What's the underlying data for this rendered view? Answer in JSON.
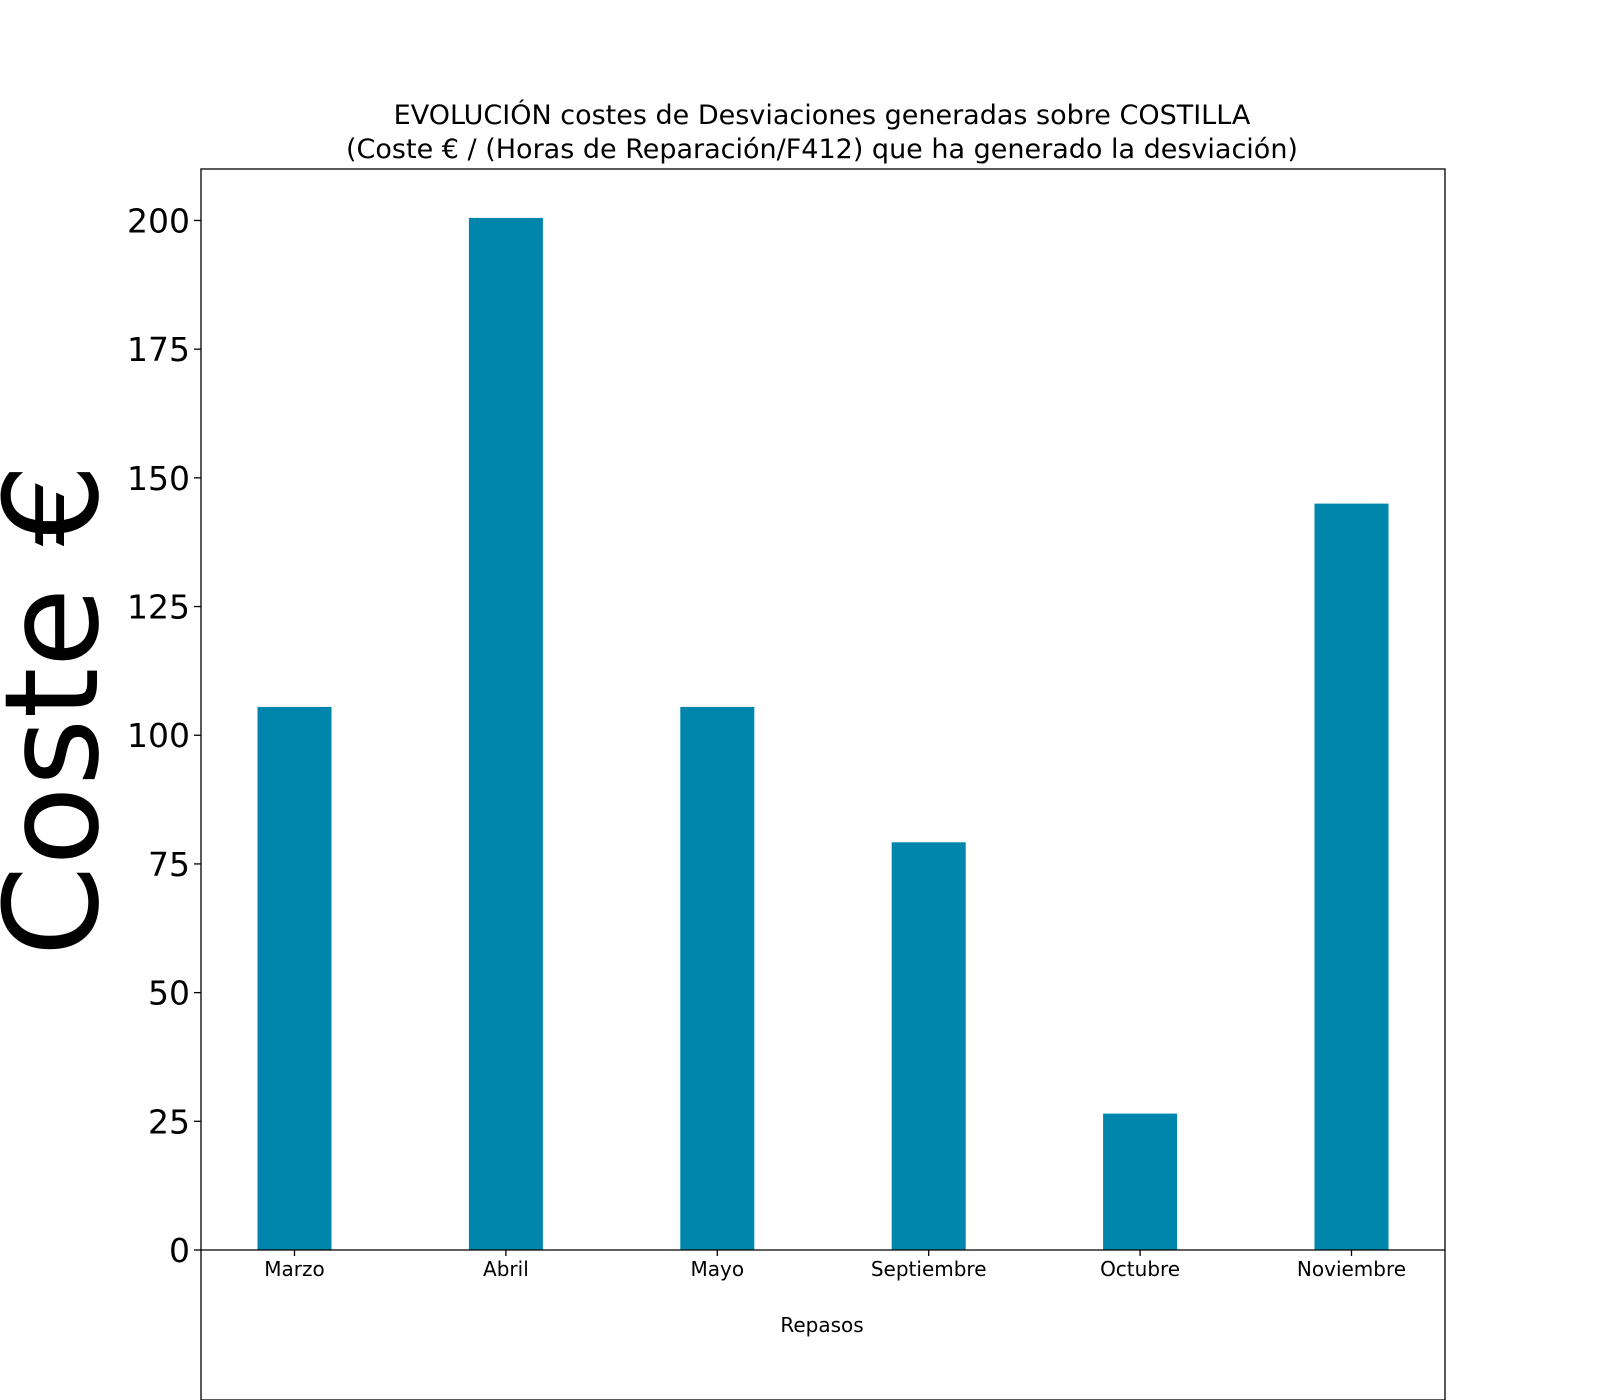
{
  "chart_data": {
    "type": "bar",
    "title_lines": [
      "EVOLUCIÓN costes de Desviaciones  generadas  sobre COSTILLA",
      "(Coste € / (Horas de Reparación/F412) que ha generado la desviación)"
    ],
    "xlabel": "Repasos",
    "ylabel": "Coste €",
    "categories": [
      "Marzo",
      "Abril",
      "Mayo",
      "Septiembre",
      "Octubre",
      "Noviembre"
    ],
    "values": [
      105.5,
      200.5,
      105.5,
      79.2,
      26.5,
      145.0
    ],
    "ylim": [
      0,
      210
    ],
    "yticks": [
      "0",
      "25",
      "50",
      "75",
      "100",
      "125",
      "150",
      "175",
      "200"
    ],
    "grid": false,
    "legend": "none",
    "bar_color": "#0086ad"
  }
}
